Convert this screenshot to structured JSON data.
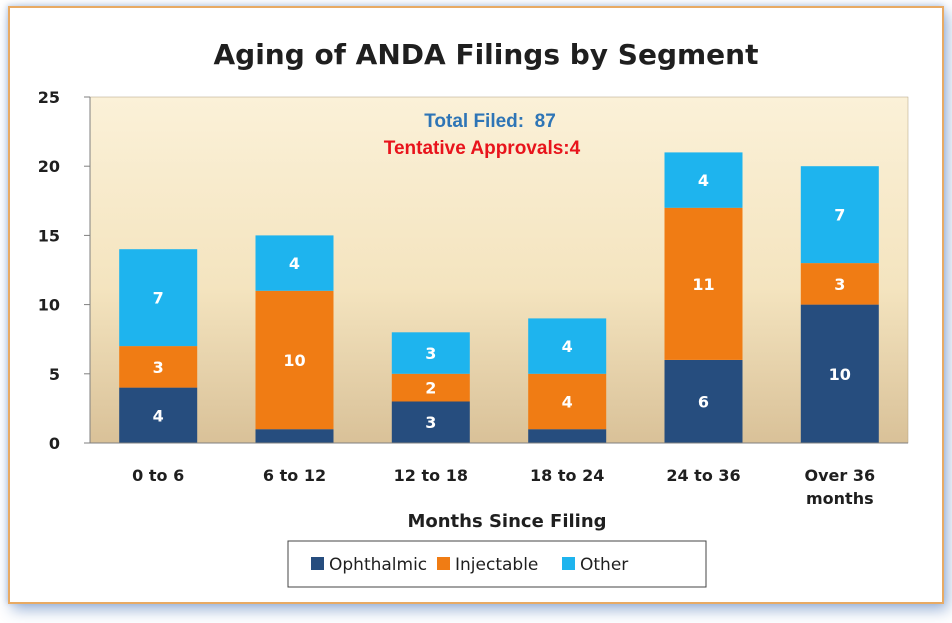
{
  "chart_data": {
    "type": "bar",
    "stacked": true,
    "title": "Aging of ANDA Filings by Segment",
    "xlabel": "Months Since Filing",
    "ylabel": "",
    "ylim": [
      0,
      25
    ],
    "yticks": [
      0,
      5,
      10,
      15,
      20,
      25
    ],
    "categories": [
      [
        "0 to 6"
      ],
      [
        "6 to 12"
      ],
      [
        "12 to 18"
      ],
      [
        "18 to 24"
      ],
      [
        "24 to 36"
      ],
      [
        "Over 36",
        "months"
      ]
    ],
    "series": [
      {
        "name": "Ophthalmic",
        "color": "#264d7e",
        "values": [
          4,
          1,
          3,
          1,
          6,
          10
        ]
      },
      {
        "name": "Injectable",
        "color": "#f07c14",
        "values": [
          3,
          10,
          2,
          4,
          11,
          3
        ]
      },
      {
        "name": "Other",
        "color": "#1eb4ee",
        "values": [
          7,
          4,
          3,
          4,
          4,
          7
        ]
      }
    ],
    "annotations": [
      {
        "text": "Total Filed:  87",
        "color": "#2e75b6"
      },
      {
        "text": "Tentative Approvals:4",
        "color": "#e8141c"
      }
    ],
    "legend_position": "bottom",
    "grid": false,
    "plot_background": "gradient-beige"
  }
}
